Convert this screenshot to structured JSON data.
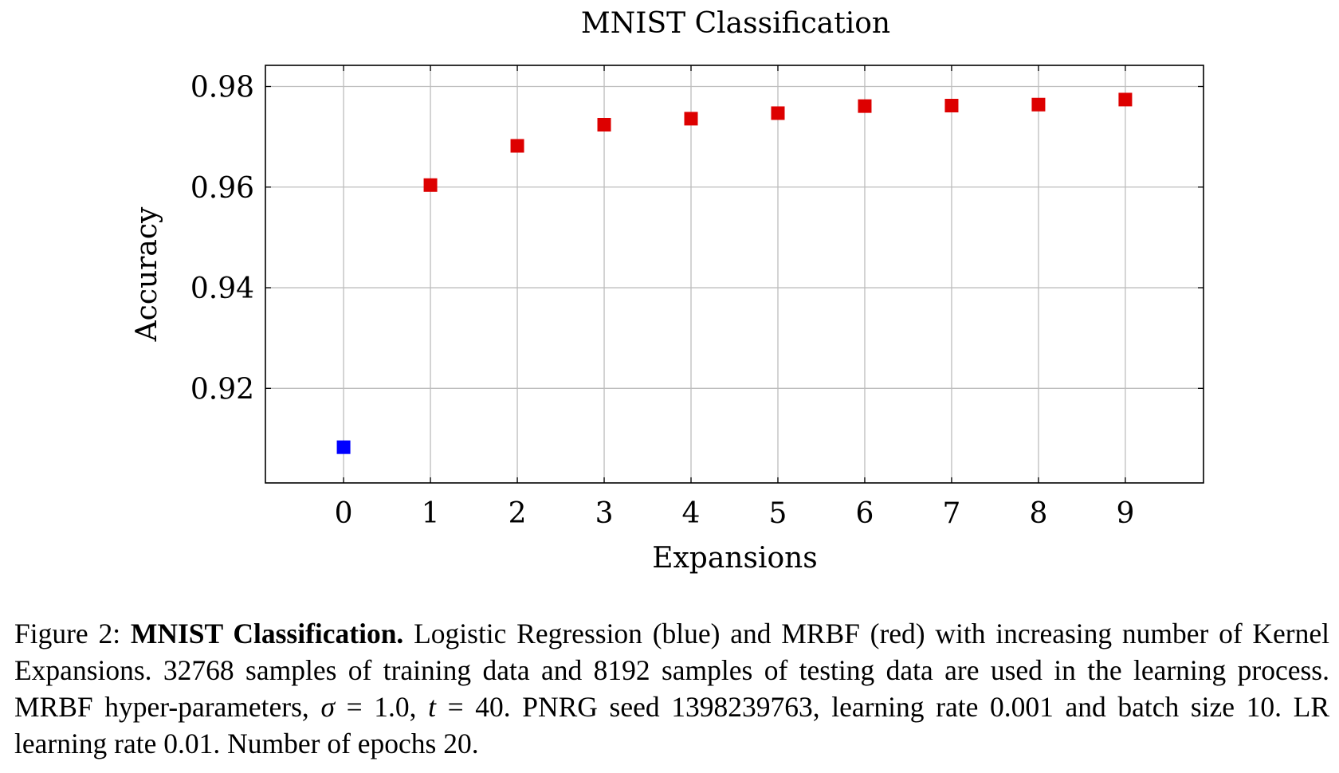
{
  "chart_data": {
    "type": "scatter",
    "title": "MNIST Classification",
    "xlabel": "Expansions",
    "ylabel": "Accuracy",
    "xlim": [
      -0.9,
      9.9
    ],
    "ylim": [
      0.9012,
      0.9842
    ],
    "xticks": [
      0,
      1,
      2,
      3,
      4,
      5,
      6,
      7,
      8,
      9
    ],
    "yticks": [
      0.92,
      0.94,
      0.96,
      0.98
    ],
    "ytick_labels": [
      "0.92",
      "0.94",
      "0.96",
      "0.98"
    ],
    "grid": true,
    "series": [
      {
        "color": "#0000ff",
        "marker": "square",
        "x": [
          0
        ],
        "y": [
          0.9083
        ]
      },
      {
        "color": "#dd0000",
        "marker": "square",
        "x": [
          1,
          2,
          3,
          4,
          5,
          6,
          7,
          8,
          9
        ],
        "y": [
          0.9604,
          0.9682,
          0.9724,
          0.9736,
          0.9747,
          0.9761,
          0.9762,
          0.9764,
          0.9774
        ]
      }
    ]
  },
  "caption": {
    "figure_label": "Figure 2:",
    "bold_title": "MNIST Classification.",
    "part1": "Logistic Regression (blue) and MRBF (red) with increasing number of Kernel Expansions. 32768 samples of training data and 8192 samples of testing data are used in the learning process. MRBF hyper-parameters,",
    "sigma_symbol": "σ",
    "sigma_eq": "= 1.0,",
    "t_symbol": "t",
    "t_eq": "= 40.",
    "part2": "PNRG seed 1398239763, learning rate 0.001 and batch size 10. LR learning rate 0.01. Number of epochs 20."
  }
}
